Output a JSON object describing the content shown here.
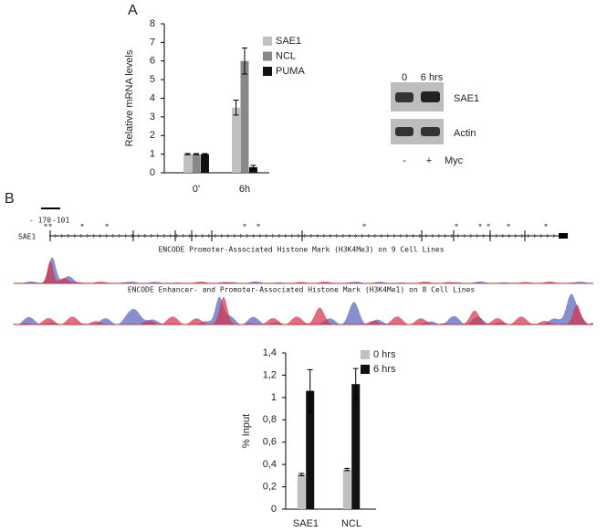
{
  "panels": {
    "a": "A",
    "b": "B"
  },
  "blot": {
    "lanes": [
      "0",
      "6 hrs"
    ],
    "rows": [
      "SAE1",
      "Actin"
    ],
    "treatment": [
      "-",
      "+"
    ],
    "treatment_label": "Myc"
  },
  "track": {
    "gene": "SAE1",
    "positions": [
      "- 170",
      "-101"
    ],
    "asterisk": "*",
    "tracks": [
      "ENCODE Promoter-Associated Histone Mark (H3K4Me3) on 9 Cell Lines",
      "ENCODE Enhancer- and Promoter-Associated Histone Mark (H3K4Me1) on 8 Cell Lines"
    ]
  },
  "chart_data": [
    {
      "type": "bar",
      "ylabel": "Relative mRNA levels",
      "categories": [
        "0'",
        "6h"
      ],
      "series": [
        {
          "name": "SAE1",
          "color": "#c0c0c0",
          "values": [
            1,
            3.5
          ],
          "errors": [
            0.03,
            0.4
          ]
        },
        {
          "name": "NCL",
          "color": "#888888",
          "values": [
            1,
            6
          ],
          "errors": [
            0.03,
            0.7
          ]
        },
        {
          "name": "PUMA",
          "color": "#111111",
          "values": [
            1,
            0.3
          ],
          "errors": [
            0.03,
            0.1
          ]
        }
      ],
      "ylim": [
        0,
        8
      ],
      "yticks": [
        0,
        1,
        2,
        3,
        4,
        5,
        6,
        7,
        8
      ]
    },
    {
      "type": "bar",
      "ylabel": "% Input",
      "categories": [
        "SAE1",
        "NCL"
      ],
      "series": [
        {
          "name": "0 hrs",
          "color": "#c0c0c0",
          "values": [
            0.31,
            0.355
          ],
          "errors": [
            0.01,
            0.01
          ]
        },
        {
          "name": "6 hrs",
          "color": "#111111",
          "values": [
            1.06,
            1.12
          ],
          "errors": [
            0.19,
            0.14
          ]
        }
      ],
      "ylim": [
        0,
        1.4
      ],
      "yticks": [
        0,
        {
          "value": 0.2,
          "label": "0,2"
        },
        {
          "value": 0.4,
          "label": "0,4"
        },
        {
          "value": 0.6,
          "label": "0,6"
        },
        {
          "value": 0.8,
          "label": "0,8"
        },
        1,
        {
          "value": 1.2,
          "label": "1,2"
        },
        {
          "value": 1.4,
          "label": "1,4"
        }
      ]
    }
  ]
}
